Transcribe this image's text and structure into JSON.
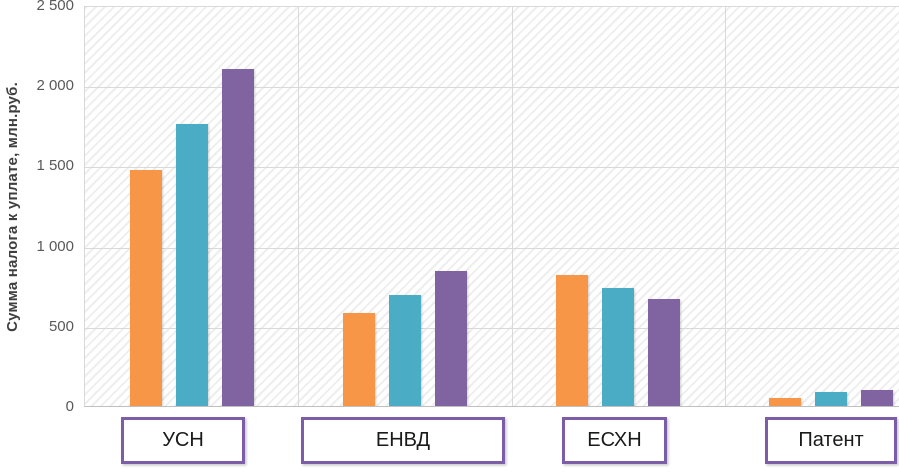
{
  "chart_data": {
    "type": "bar",
    "title": "",
    "ylabel": "Сумма налога к уплате, млн.руб.",
    "xlabel": "",
    "categories": [
      "УСН",
      "ЕНВД",
      "ЕСХН",
      "Патент"
    ],
    "series": [
      {
        "name": "series-orange",
        "color": "#F79646",
        "values": [
          1470,
          580,
          815,
          50
        ]
      },
      {
        "name": "series-teal",
        "color": "#4BACC6",
        "values": [
          1760,
          690,
          735,
          85
        ]
      },
      {
        "name": "series-purple",
        "color": "#8064A2",
        "values": [
          2100,
          840,
          670,
          100
        ]
      }
    ],
    "ylim": [
      0,
      2500
    ],
    "yticks": [
      {
        "value": 0,
        "label": "0"
      },
      {
        "value": 500,
        "label": "500"
      },
      {
        "value": 1000,
        "label": "1 000"
      },
      {
        "value": 1500,
        "label": "1 500"
      },
      {
        "value": 2000,
        "label": "2 000"
      },
      {
        "value": 2500,
        "label": "2 500"
      }
    ],
    "grid": "horizontal-and-category-separators",
    "legend": "none",
    "plot_background": "light-diagonal-hatch",
    "category_box_border_color": "#7B5EA7",
    "gridline_color": "#D9D9D9"
  }
}
